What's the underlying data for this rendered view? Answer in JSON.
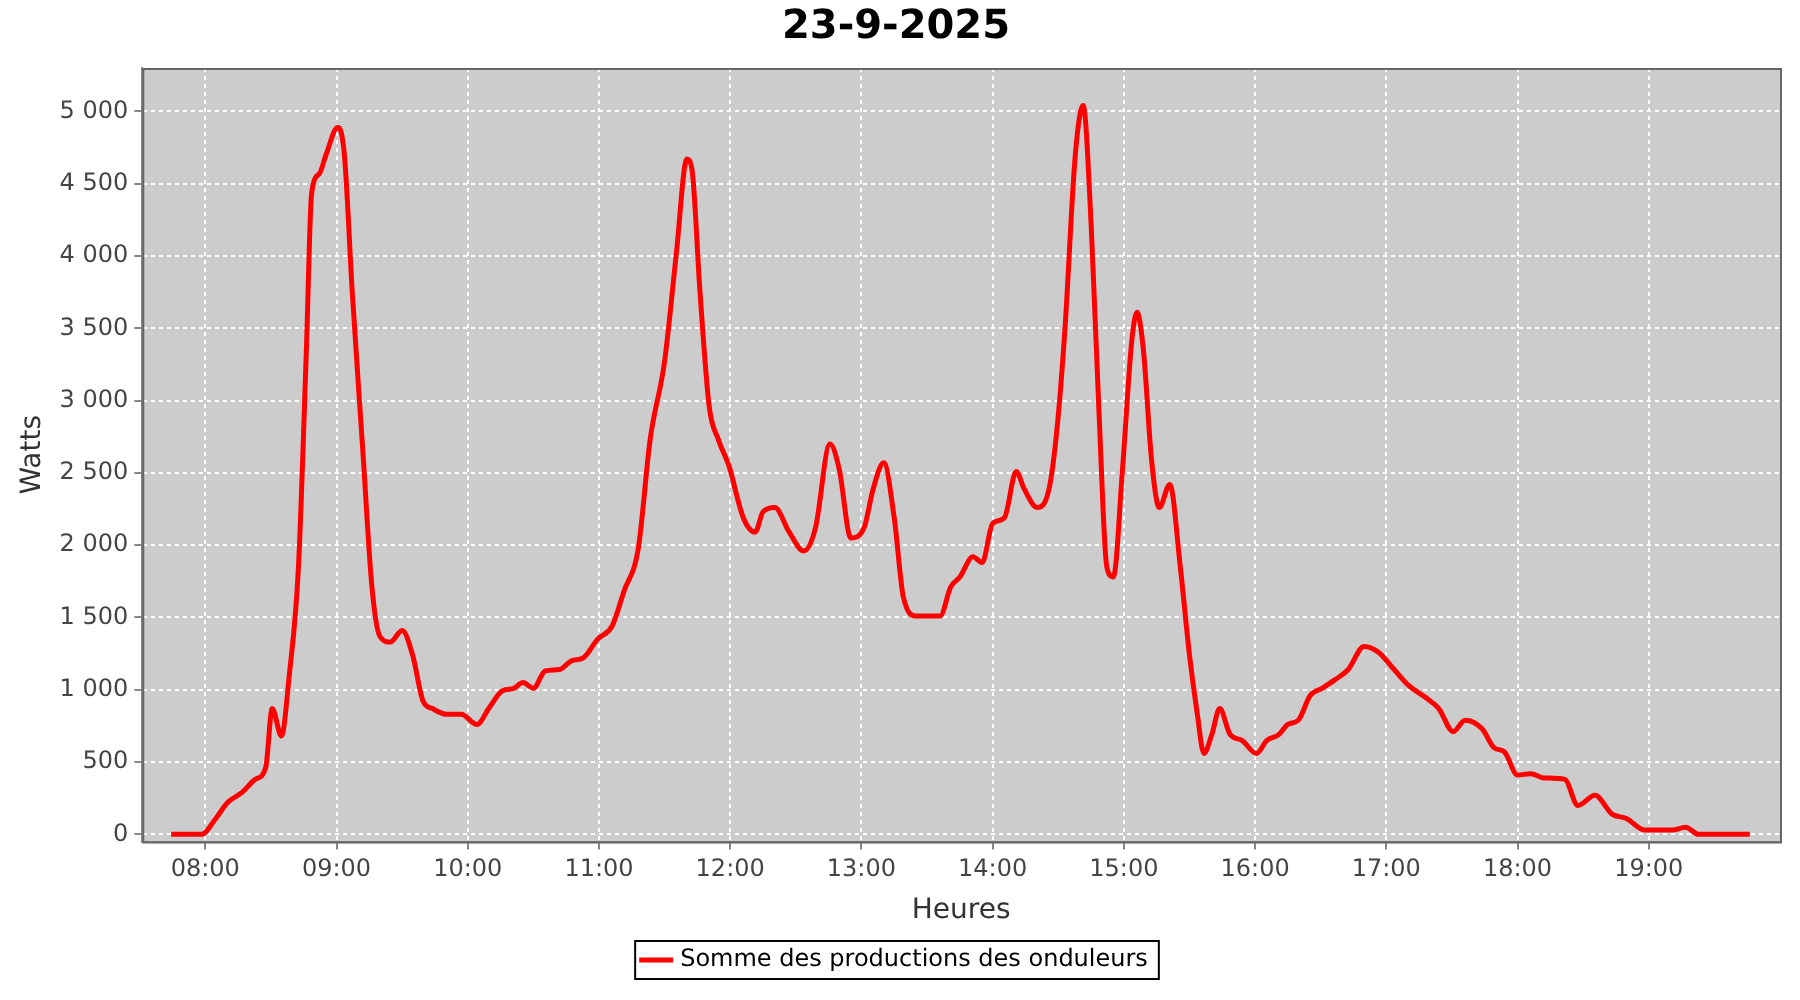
{
  "chart_data": {
    "type": "line",
    "title": "23-9-2025",
    "xlabel": "Heures",
    "ylabel": "Watts",
    "x": [
      7.74,
      7.97,
      8.08,
      8.17,
      8.28,
      8.38,
      8.46,
      8.51,
      8.58,
      8.64,
      8.71,
      8.77,
      8.81,
      8.87,
      8.92,
      9.01,
      9.06,
      9.12,
      9.2,
      9.27,
      9.33,
      9.41,
      9.5,
      9.58,
      9.66,
      9.73,
      9.84,
      9.95,
      10.07,
      10.16,
      10.26,
      10.35,
      10.42,
      10.5,
      10.59,
      10.7,
      10.79,
      10.88,
      10.99,
      11.1,
      11.19,
      11.3,
      11.39,
      11.5,
      11.59,
      11.67,
      11.71,
      11.77,
      11.84,
      11.91,
      11.99,
      12.1,
      12.19,
      12.25,
      12.34,
      12.45,
      12.56,
      12.65,
      12.76,
      12.83,
      12.92,
      13.02,
      13.09,
      13.17,
      13.25,
      13.32,
      13.42,
      13.51,
      13.6,
      13.68,
      13.75,
      13.85,
      13.92,
      14,
      14.09,
      14.18,
      14.24,
      14.34,
      14.43,
      14.49,
      14.55,
      14.63,
      14.69,
      14.75,
      14.81,
      14.87,
      14.92,
      14.99,
      15.06,
      15.1,
      15.15,
      15.21,
      15.27,
      15.35,
      15.43,
      15.5,
      15.56,
      15.61,
      15.67,
      15.73,
      15.81,
      15.9,
      16.01,
      16.09,
      16.18,
      16.25,
      16.33,
      16.42,
      16.51,
      16.61,
      16.71,
      16.83,
      16.94,
      17.06,
      17.17,
      17.31,
      17.4,
      17.51,
      17.6,
      17.73,
      17.82,
      17.9,
      18,
      18.1,
      18.2,
      18.36,
      18.46,
      18.59,
      18.72,
      18.83,
      18.97,
      19.09,
      19.18,
      19.28,
      19.38,
      19.77
    ],
    "series": [
      {
        "name": "Somme des productions des onduleurs",
        "color": "#ff0000",
        "values": [
          0,
          0,
          110,
          220,
          290,
          380,
          460,
          870,
          680,
          1100,
          1850,
          3340,
          4430,
          4570,
          4700,
          4890,
          4700,
          3750,
          2660,
          1710,
          1370,
          1330,
          1410,
          1240,
          920,
          870,
          830,
          830,
          760,
          870,
          990,
          1010,
          1050,
          1010,
          1130,
          1140,
          1200,
          1220,
          1350,
          1440,
          1680,
          1980,
          2730,
          3270,
          4020,
          4670,
          4590,
          3750,
          2960,
          2730,
          2550,
          2190,
          2090,
          2230,
          2260,
          2090,
          1960,
          2120,
          2700,
          2530,
          2050,
          2120,
          2390,
          2570,
          2190,
          1640,
          1510,
          1510,
          1510,
          1710,
          1780,
          1920,
          1880,
          2150,
          2190,
          2510,
          2390,
          2260,
          2390,
          2800,
          3480,
          4700,
          5040,
          4230,
          2930,
          1850,
          1780,
          2530,
          3410,
          3610,
          3340,
          2600,
          2260,
          2420,
          1850,
          1240,
          830,
          560,
          690,
          870,
          690,
          650,
          560,
          650,
          690,
          760,
          790,
          960,
          1010,
          1070,
          1140,
          1300,
          1260,
          1140,
          1030,
          940,
          870,
          710,
          790,
          730,
          600,
          570,
          410,
          420,
          390,
          380,
          200,
          270,
          140,
          110,
          30,
          30,
          30,
          50,
          0,
          0
        ]
      }
    ],
    "xlim": [
      7.52,
      20.0
    ],
    "xticks": [
      {
        "value": 8,
        "label": "08:00"
      },
      {
        "value": 9,
        "label": "09:00"
      },
      {
        "value": 10,
        "label": "10:00"
      },
      {
        "value": 11,
        "label": "11:00"
      },
      {
        "value": 12,
        "label": "12:00"
      },
      {
        "value": 13,
        "label": "13:00"
      },
      {
        "value": 14,
        "label": "14:00"
      },
      {
        "value": 15,
        "label": "15:00"
      },
      {
        "value": 16,
        "label": "16:00"
      },
      {
        "value": 17,
        "label": "17:00"
      },
      {
        "value": 18,
        "label": "18:00"
      },
      {
        "value": 19,
        "label": "19:00"
      }
    ],
    "ylim": [
      -50,
      5300
    ],
    "yticks": [
      0,
      500,
      {
        "value": 1000,
        "label": "1 000"
      },
      {
        "value": 1500,
        "label": "1 500"
      },
      {
        "value": 2000,
        "label": "2 000"
      },
      {
        "value": 2500,
        "label": "2 500"
      },
      {
        "value": 3000,
        "label": "3 000"
      },
      {
        "value": 3500,
        "label": "3 500"
      },
      {
        "value": 4000,
        "label": "4 000"
      },
      {
        "value": 4500,
        "label": "4 500"
      },
      {
        "value": 5000,
        "label": "5 000"
      }
    ],
    "grid": true,
    "legend": "bottom",
    "marker": "none",
    "line_style": "solid"
  }
}
